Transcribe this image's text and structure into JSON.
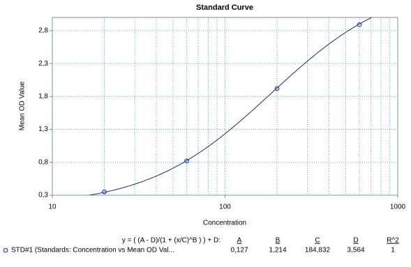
{
  "chart_data": {
    "type": "scatter",
    "title": "Standard Curve",
    "x_label": "Concentration",
    "y_label": "Mean OD Value",
    "log_x": true,
    "grid": true,
    "xlim": [
      10,
      1000
    ],
    "xticks": [
      10,
      100,
      1000
    ],
    "xminor": [
      20,
      30,
      40,
      50,
      60,
      70,
      80,
      90,
      200,
      300,
      400,
      500,
      600,
      700,
      800,
      900
    ],
    "ylim": [
      0.3,
      3.0
    ],
    "yticks": [
      {
        "value": 0.3,
        "label": "0,3"
      },
      {
        "value": 0.8,
        "label": "0,8"
      },
      {
        "value": 1.3,
        "label": "1,3"
      },
      {
        "value": 1.8,
        "label": "1,8"
      },
      {
        "value": 2.3,
        "label": "2,3"
      },
      {
        "value": 2.8,
        "label": "2,8"
      }
    ],
    "series": [
      {
        "name": "STD#1 (Standards: Concentration vs Mean OD Val...",
        "color": "#2b3fa8",
        "curve_color": "#1c2a7a",
        "x": [
          20,
          60,
          200,
          600
        ],
        "values": [
          0.35,
          0.82,
          1.92,
          2.89
        ]
      }
    ],
    "fit": {
      "equation": "y = ( (A - D)/(1 + (x/C)^B ) ) + D:",
      "headers": [
        "A",
        "B",
        "C",
        "D",
        "R^2"
      ],
      "params": [
        {
          "value": 0.127,
          "label": "0,127"
        },
        {
          "value": 1.214,
          "label": "1,214"
        },
        {
          "value": 184.832,
          "label": "184,832"
        },
        {
          "value": 3.564,
          "label": "3,564"
        }
      ],
      "r2": 1
    }
  }
}
